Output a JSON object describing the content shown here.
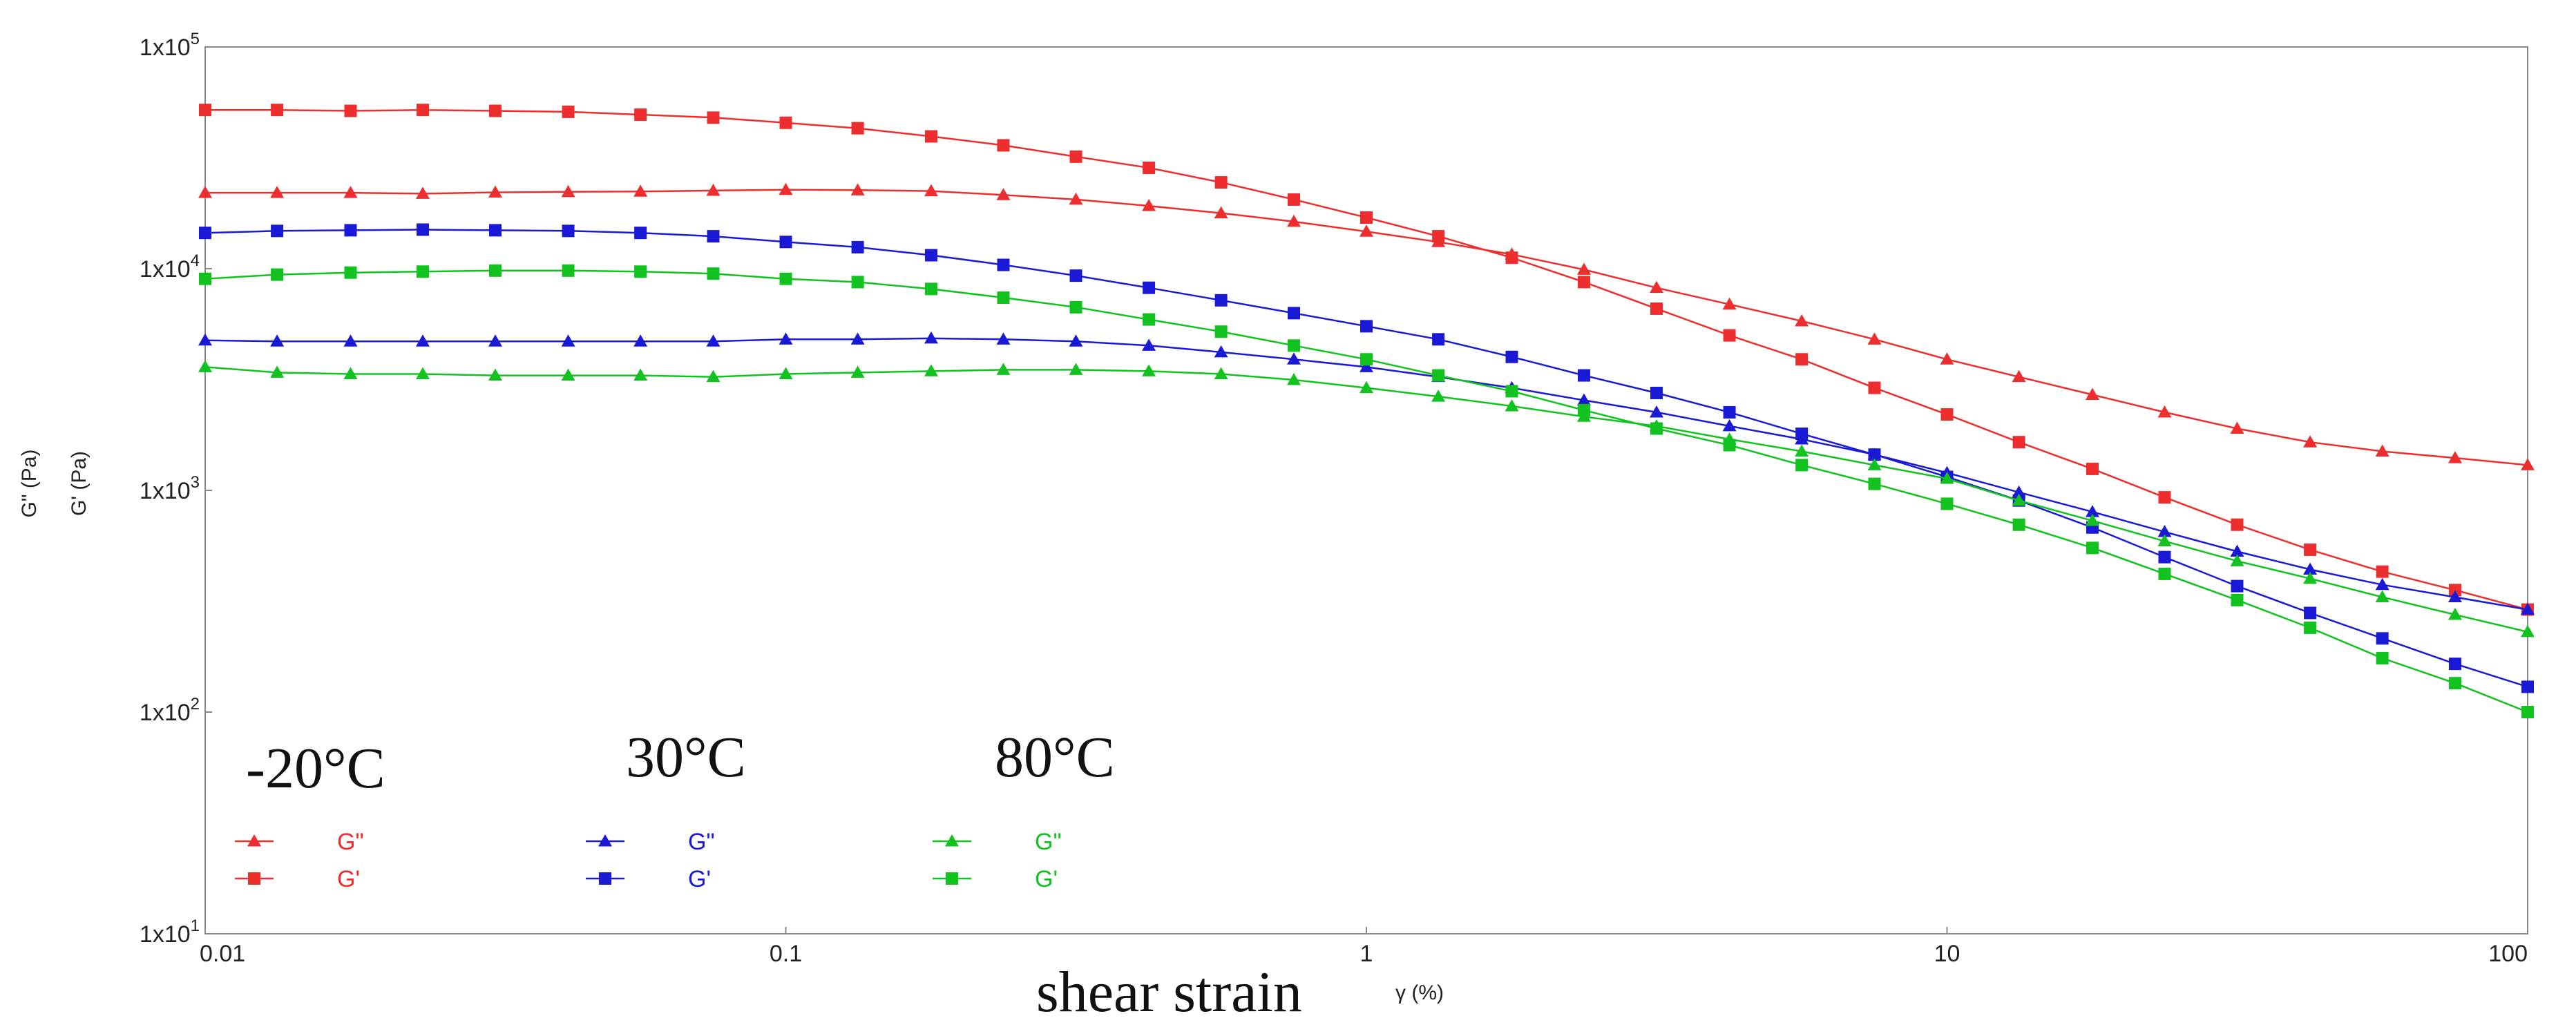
{
  "chart_data": {
    "type": "line",
    "x_scale": "log",
    "y_scale": "log",
    "xlim": [
      0.01,
      100
    ],
    "ylim": [
      10,
      100000
    ],
    "x_ticks": [
      {
        "value": 0.01,
        "label": "0.01"
      },
      {
        "value": 0.1,
        "label": "0.1"
      },
      {
        "value": 1,
        "label": "1"
      },
      {
        "value": 10,
        "label": "10"
      },
      {
        "value": 100,
        "label": "100"
      }
    ],
    "y_ticks": [
      {
        "value": 10,
        "base": "1x10",
        "exp": "1"
      },
      {
        "value": 100,
        "base": "1x10",
        "exp": "2"
      },
      {
        "value": 1000,
        "base": "1x10",
        "exp": "3"
      },
      {
        "value": 10000,
        "base": "1x10",
        "exp": "4"
      },
      {
        "value": 100000,
        "base": "1x10",
        "exp": "5"
      }
    ],
    "ylabel_lines": [
      "G\" (Pa)",
      "G' (Pa)"
    ],
    "xlabel": "shear strain",
    "xlabel_unit": "γ (%)",
    "x": [
      0.01,
      0.0133,
      0.0178,
      0.0237,
      0.0316,
      0.0422,
      0.0562,
      0.075,
      0.1,
      0.133,
      0.178,
      0.237,
      0.316,
      0.422,
      0.562,
      0.75,
      1,
      1.33,
      1.78,
      2.37,
      3.16,
      4.22,
      5.62,
      7.5,
      10,
      13.3,
      17.8,
      23.7,
      31.6,
      42.2,
      56.2,
      75,
      100
    ],
    "groups": [
      {
        "temperature": "-20°C",
        "color": "#ee2e2e",
        "legend": [
          "G\"",
          "G'"
        ]
      },
      {
        "temperature": "30°C",
        "color": "#1a1ad6",
        "legend": [
          "G\"",
          "G'"
        ]
      },
      {
        "temperature": "80°C",
        "color": "#12c21e",
        "legend": [
          "G\"",
          "G'"
        ]
      }
    ],
    "series": [
      {
        "name": "-20°C G\"",
        "group": 0,
        "marker": "triangle",
        "values": [
          22000,
          22000,
          22000,
          21800,
          22100,
          22200,
          22300,
          22500,
          22700,
          22600,
          22400,
          21500,
          20500,
          19200,
          17800,
          16300,
          14700,
          13200,
          11600,
          9900,
          8200,
          6900,
          5800,
          4800,
          3900,
          3250,
          2700,
          2250,
          1900,
          1650,
          1500,
          1400,
          1300
        ]
      },
      {
        "name": "-20°C G'",
        "group": 0,
        "marker": "square",
        "values": [
          52000,
          52000,
          51500,
          52000,
          51500,
          51000,
          49500,
          48000,
          45500,
          43000,
          39500,
          36000,
          32000,
          28500,
          24500,
          20500,
          17000,
          14000,
          11200,
          8700,
          6600,
          5000,
          3900,
          2900,
          2200,
          1650,
          1250,
          930,
          700,
          540,
          430,
          355,
          290
        ]
      },
      {
        "name": "30°C G\"",
        "group": 1,
        "marker": "triangle",
        "values": [
          4750,
          4700,
          4700,
          4700,
          4700,
          4700,
          4700,
          4700,
          4800,
          4800,
          4850,
          4800,
          4700,
          4500,
          4200,
          3900,
          3600,
          3250,
          2900,
          2550,
          2250,
          1950,
          1700,
          1450,
          1200,
          980,
          800,
          650,
          530,
          440,
          375,
          330,
          290
        ]
      },
      {
        "name": "30°C G'",
        "group": 1,
        "marker": "square",
        "values": [
          14500,
          14800,
          14900,
          15000,
          14900,
          14800,
          14500,
          14000,
          13200,
          12500,
          11500,
          10400,
          9300,
          8200,
          7200,
          6300,
          5500,
          4800,
          4000,
          3300,
          2750,
          2250,
          1800,
          1450,
          1150,
          900,
          680,
          500,
          370,
          280,
          215,
          165,
          130
        ]
      },
      {
        "name": "80°C G\"",
        "group": 2,
        "marker": "triangle",
        "values": [
          3600,
          3400,
          3350,
          3350,
          3300,
          3300,
          3300,
          3250,
          3350,
          3400,
          3450,
          3500,
          3500,
          3450,
          3350,
          3150,
          2900,
          2650,
          2400,
          2150,
          1950,
          1700,
          1500,
          1300,
          1130,
          900,
          730,
          590,
          480,
          400,
          330,
          275,
          230
        ]
      },
      {
        "name": "80°C G'",
        "group": 2,
        "marker": "square",
        "values": [
          9000,
          9400,
          9600,
          9700,
          9800,
          9800,
          9700,
          9500,
          9000,
          8700,
          8100,
          7400,
          6700,
          5900,
          5200,
          4500,
          3900,
          3300,
          2800,
          2300,
          1900,
          1600,
          1300,
          1070,
          870,
          700,
          550,
          420,
          320,
          240,
          175,
          135,
          100
        ]
      }
    ]
  }
}
